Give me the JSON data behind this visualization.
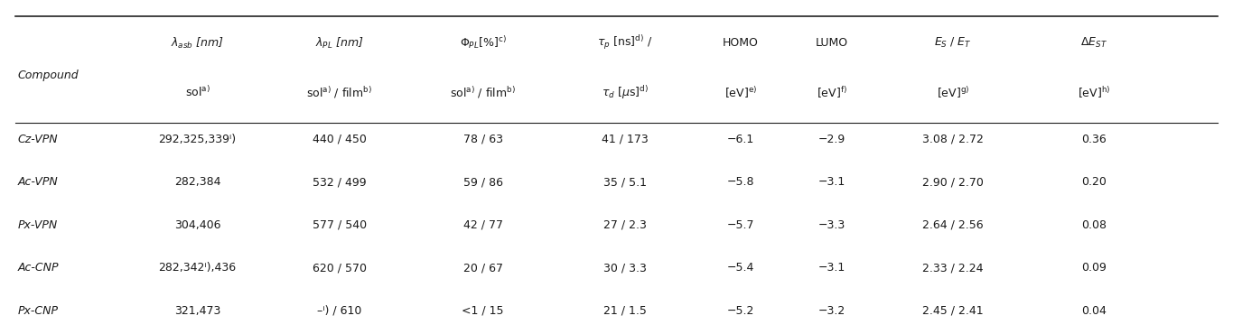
{
  "rows": [
    [
      "Cz-VPN",
      "292,325,339ⁱ)",
      "440 / 450",
      "78 / 63",
      "41 / 173",
      "−6.1",
      "−2.9",
      "3.08 / 2.72",
      "0.36"
    ],
    [
      "Ac-VPN",
      "282,384",
      "532 / 499",
      "59 / 86",
      "35 / 5.1",
      "−5.8",
      "−3.1",
      "2.90 / 2.70",
      "0.20"
    ],
    [
      "Px-VPN",
      "304,406",
      "577 / 540",
      "42 / 77",
      "27 / 2.3",
      "−5.7",
      "−3.3",
      "2.64 / 2.56",
      "0.08"
    ],
    [
      "Ac-CNP",
      "282,342ⁱ),436",
      "620 / 570",
      "20 / 67",
      "30 / 3.3",
      "−5.4",
      "−3.1",
      "2.33 / 2.24",
      "0.09"
    ],
    [
      "Px-CNP",
      "321,473",
      "–ⁱ) / 610",
      "<1 / 15",
      "21 / 1.5",
      "−5.2",
      "−3.2",
      "2.45 / 2.41",
      "0.04"
    ]
  ],
  "background_color": "#ffffff",
  "text_color": "#1a1a1a",
  "fs": 9.0
}
